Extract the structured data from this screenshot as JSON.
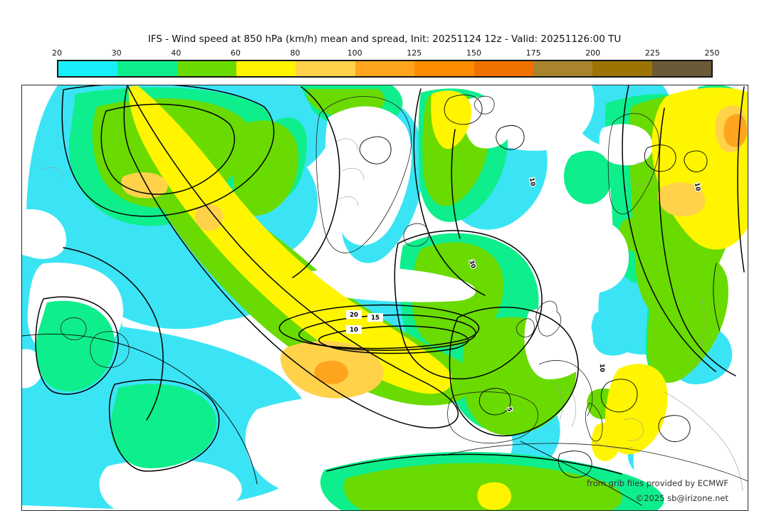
{
  "title": "IFS - Wind speed at 850 hPa (km/h) mean and spread, Init: 20251124 12z - Valid: 20251126:00 TU",
  "colorbar": {
    "tick_labels": [
      "20",
      "30",
      "40",
      "60",
      "80",
      "100",
      "125",
      "150",
      "175",
      "200",
      "225",
      "250"
    ],
    "segment_colors": [
      "#17EFFB",
      "#0FEE8C",
      "#69DB01",
      "#FFF500",
      "#FFD24A",
      "#FFA51D",
      "#FF8C00",
      "#F07000",
      "#A8842E",
      "#9C7403",
      "#6A5A38"
    ]
  },
  "map": {
    "palette": {
      "cyan": "#3BE4F5",
      "spring_green": "#0FEE8C",
      "green": "#69DB01",
      "yellow": "#FFF500",
      "gold": "#FFD24A",
      "orange": "#FFA51D",
      "white": "#FFFFFF"
    },
    "contour_labels": [
      {
        "value": "20"
      },
      {
        "value": "15"
      },
      {
        "value": "10"
      },
      {
        "value": "10"
      },
      {
        "value": "30"
      },
      {
        "value": "10"
      },
      {
        "value": "5"
      },
      {
        "value": "10"
      }
    ],
    "attribution_line1": "from grib files provided by ECMWF",
    "attribution_line2": "©2025 sb@irizone.net"
  },
  "chart_data": {
    "type": "heatmap",
    "title": "IFS - Wind speed at 850 hPa (km/h) mean and spread, Init: 20251124 12z - Valid: 20251126:00 TU",
    "model": "IFS",
    "variable": "Wind speed at 850 hPa",
    "statistic": "mean and spread",
    "units": "km/h",
    "init": "20251124 12z",
    "valid": "20251126:00 TU",
    "colorbar_levels": [
      20,
      30,
      40,
      60,
      80,
      100,
      125,
      150,
      175,
      200,
      225,
      250
    ],
    "colorbar_colors": [
      "#17EFFB",
      "#0FEE8C",
      "#69DB01",
      "#FFF500",
      "#FFD24A",
      "#FFA51D",
      "#FF8C00",
      "#F07000",
      "#A8842E",
      "#9C7403",
      "#6A5A38"
    ],
    "spread_contour_values_visible": [
      5,
      10,
      15,
      20,
      30
    ],
    "max_filled_level_visible": 125,
    "region": "North Atlantic and Europe",
    "legend_position": "top",
    "grid": false,
    "credit": "from grib files provided by ECMWF, ©2025 sb@irizone.net"
  }
}
